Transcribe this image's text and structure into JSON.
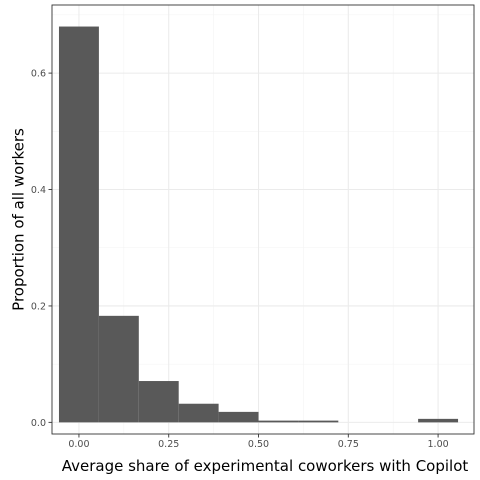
{
  "chart_data": {
    "type": "bar",
    "subtype": "histogram",
    "xlabel": "Average share of experimental coworkers with Copilot",
    "ylabel": "Proportion of all workers",
    "xlim": [
      -0.075,
      1.1
    ],
    "ylim": [
      -0.02,
      0.717
    ],
    "x_ticks": [
      0.0,
      0.25,
      0.5,
      0.75,
      1.0
    ],
    "x_tick_labels": [
      "0.00",
      "0.25",
      "0.50",
      "0.75",
      "1.00"
    ],
    "y_ticks": [
      0.0,
      0.2,
      0.4,
      0.6
    ],
    "y_tick_labels": [
      "0.0",
      "0.2",
      "0.4",
      "0.6"
    ],
    "grid": true,
    "bar_color": "#595959",
    "bins": [
      {
        "x0": -0.0556,
        "x1": 0.0556,
        "value": 0.68
      },
      {
        "x0": 0.0556,
        "x1": 0.1667,
        "value": 0.183
      },
      {
        "x0": 0.1667,
        "x1": 0.2778,
        "value": 0.071
      },
      {
        "x0": 0.2778,
        "x1": 0.3889,
        "value": 0.032
      },
      {
        "x0": 0.3889,
        "x1": 0.5,
        "value": 0.018
      },
      {
        "x0": 0.5,
        "x1": 0.6111,
        "value": 0.003
      },
      {
        "x0": 0.6111,
        "x1": 0.7222,
        "value": 0.003
      },
      {
        "x0": 0.9444,
        "x1": 1.0556,
        "value": 0.006
      }
    ]
  }
}
